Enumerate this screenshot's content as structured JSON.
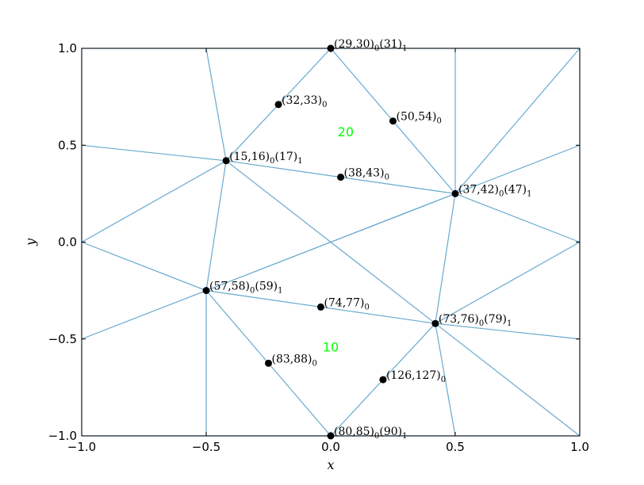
{
  "chart_data": {
    "type": "mesh",
    "xlabel": "x",
    "ylabel": "y",
    "xlim": [
      -1.0,
      1.0
    ],
    "ylim": [
      -1.0,
      1.0
    ],
    "xticks": [
      "−1.0",
      "−0.5",
      "0.0",
      "0.5",
      "1.0"
    ],
    "yticks": [
      "−1.0",
      "−0.5",
      "0.0",
      "0.5",
      "1.0"
    ],
    "grid": false,
    "colors": {
      "mesh": "#67a9cf",
      "points": "#000000",
      "region_labels": "#00ff00",
      "axes": "#000000"
    },
    "vertices": [
      [
        -1.0,
        1.0
      ],
      [
        -0.5,
        1.0
      ],
      [
        0.0,
        1.0
      ],
      [
        0.5,
        1.0
      ],
      [
        1.0,
        1.0
      ],
      [
        -1.0,
        0.5
      ],
      [
        1.0,
        0.5
      ],
      [
        -1.0,
        0.0
      ],
      [
        1.0,
        0.0
      ],
      [
        -1.0,
        -0.5
      ],
      [
        1.0,
        -0.5
      ],
      [
        -1.0,
        -1.0
      ],
      [
        -0.5,
        -1.0
      ],
      [
        0.0,
        -1.0
      ],
      [
        0.5,
        -1.0
      ],
      [
        1.0,
        -1.0
      ],
      [
        -0.42,
        0.42
      ],
      [
        0.5,
        0.25
      ],
      [
        -0.5,
        -0.25
      ],
      [
        0.42,
        -0.42
      ],
      [
        0.0,
        0.0
      ]
    ],
    "edges": [
      [
        0,
        1
      ],
      [
        1,
        2
      ],
      [
        2,
        3
      ],
      [
        3,
        4
      ],
      [
        4,
        6
      ],
      [
        6,
        8
      ],
      [
        8,
        10
      ],
      [
        10,
        15
      ],
      [
        15,
        14
      ],
      [
        14,
        13
      ],
      [
        13,
        12
      ],
      [
        12,
        11
      ],
      [
        11,
        9
      ],
      [
        9,
        7
      ],
      [
        7,
        5
      ],
      [
        5,
        0
      ],
      [
        5,
        16
      ],
      [
        1,
        16
      ],
      [
        2,
        16
      ],
      [
        7,
        16
      ],
      [
        2,
        17
      ],
      [
        3,
        17
      ],
      [
        4,
        17
      ],
      [
        6,
        17
      ],
      [
        8,
        17
      ],
      [
        16,
        17
      ],
      [
        16,
        18
      ],
      [
        16,
        20
      ],
      [
        17,
        20
      ],
      [
        17,
        18
      ],
      [
        17,
        19
      ],
      [
        18,
        19
      ],
      [
        18,
        20
      ],
      [
        7,
        18
      ],
      [
        9,
        18
      ],
      [
        12,
        18
      ],
      [
        13,
        18
      ],
      [
        13,
        19
      ],
      [
        14,
        19
      ],
      [
        15,
        19
      ],
      [
        10,
        19
      ],
      [
        8,
        19
      ],
      [
        19,
        20
      ]
    ],
    "points": [
      {
        "x": 0.0,
        "y": 1.0,
        "label": "(29,30)",
        "sub1": "0",
        "label2": "(31)",
        "sub2": "1"
      },
      {
        "x": -0.21,
        "y": 0.71,
        "label": "(32,33)",
        "sub1": "0"
      },
      {
        "x": 0.25,
        "y": 0.625,
        "label": "(50,54)",
        "sub1": "0"
      },
      {
        "x": -0.42,
        "y": 0.42,
        "label": "(15,16)",
        "sub1": "0",
        "label2": "(17)",
        "sub2": "1"
      },
      {
        "x": 0.04,
        "y": 0.335,
        "label": "(38,43)",
        "sub1": "0"
      },
      {
        "x": 0.5,
        "y": 0.25,
        "label": "(37,42)",
        "sub1": "0",
        "label2": "(47)",
        "sub2": "1"
      },
      {
        "x": -0.5,
        "y": -0.25,
        "label": "(57,58)",
        "sub1": "0",
        "label2": "(59)",
        "sub2": "1"
      },
      {
        "x": -0.04,
        "y": -0.335,
        "label": "(74,77)",
        "sub1": "0"
      },
      {
        "x": 0.42,
        "y": -0.42,
        "label": "(73,76)",
        "sub1": "0",
        "label2": "(79)",
        "sub2": "1"
      },
      {
        "x": -0.25,
        "y": -0.625,
        "label": "(83,88)",
        "sub1": "0"
      },
      {
        "x": 0.21,
        "y": -0.71,
        "label": "(126,127)",
        "sub1": "0"
      },
      {
        "x": 0.0,
        "y": -1.0,
        "label": "(80,85)",
        "sub1": "0",
        "label2": "(90)",
        "sub2": "1"
      }
    ],
    "region_labels": [
      {
        "text": "20",
        "x": 0.06,
        "y": 0.57
      },
      {
        "text": "10",
        "x": 0.0,
        "y": -0.54
      }
    ]
  }
}
